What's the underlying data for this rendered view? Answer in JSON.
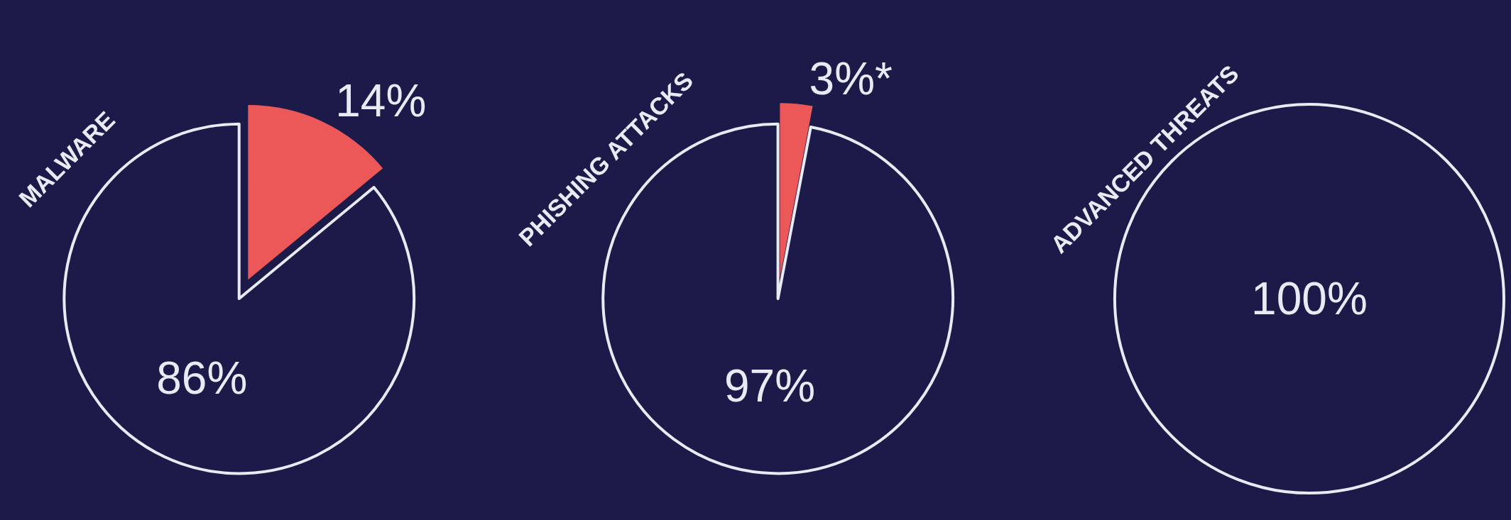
{
  "chart_data": [
    {
      "type": "pie",
      "title": "MALWARE",
      "categories": [
        null,
        null
      ],
      "values": [
        14,
        86
      ],
      "colors": [
        "#ec5757",
        "#1c1a48"
      ],
      "value_labels": [
        "14%",
        "86%"
      ]
    },
    {
      "type": "pie",
      "title": "PHISHING ATTACKS",
      "categories": [
        null,
        null
      ],
      "values": [
        3,
        97
      ],
      "colors": [
        "#ec5757",
        "#1c1a48"
      ],
      "value_labels": [
        "3%*",
        "97%"
      ]
    },
    {
      "type": "pie",
      "title": "ADVANCED THREATS",
      "categories": [
        null
      ],
      "values": [
        100
      ],
      "colors": [
        "#1c1a48"
      ],
      "value_labels": [
        "100%"
      ]
    }
  ]
}
